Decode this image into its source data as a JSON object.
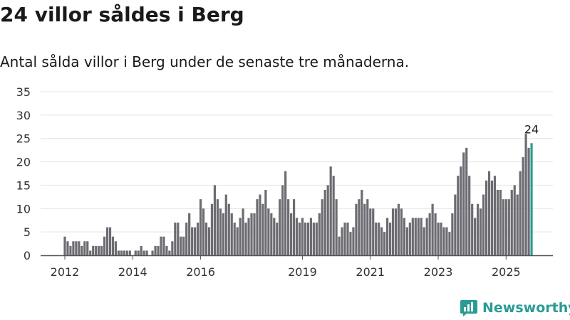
{
  "chart_data": {
    "type": "bar",
    "title": "24 villor såldes i Berg",
    "subtitle": "Antal sålda villor i Berg under de senaste tre månaderna.",
    "ylim": [
      0,
      35
    ],
    "yticks": [
      0,
      5,
      10,
      15,
      20,
      25,
      30,
      35
    ],
    "x_tick_labels": [
      {
        "label": "2012",
        "index": 0
      },
      {
        "label": "2014",
        "index": 24
      },
      {
        "label": "2016",
        "index": 48
      },
      {
        "label": "2019",
        "index": 84
      },
      {
        "label": "2021",
        "index": 108
      },
      {
        "label": "2023",
        "index": 132
      },
      {
        "label": "2025",
        "index": 156
      }
    ],
    "values": [
      4,
      3,
      2,
      3,
      3,
      3,
      2,
      3,
      3,
      1,
      2,
      2,
      2,
      2,
      4,
      6,
      6,
      4,
      3,
      1,
      1,
      1,
      1,
      1,
      0,
      1,
      1,
      2,
      1,
      1,
      0,
      1,
      2,
      2,
      4,
      4,
      2,
      1,
      3,
      7,
      7,
      4,
      4,
      7,
      9,
      6,
      6,
      7,
      12,
      10,
      7,
      6,
      11,
      15,
      12,
      10,
      9,
      13,
      11,
      9,
      7,
      6,
      8,
      10,
      7,
      8,
      9,
      9,
      12,
      13,
      11,
      14,
      10,
      9,
      8,
      7,
      12,
      15,
      18,
      12,
      9,
      12,
      8,
      7,
      8,
      7,
      7,
      8,
      7,
      7,
      9,
      12,
      14,
      15,
      19,
      17,
      12,
      4,
      6,
      7,
      7,
      5,
      6,
      11,
      12,
      14,
      11,
      12,
      10,
      10,
      7,
      7,
      6,
      5,
      8,
      7,
      10,
      10,
      11,
      10,
      8,
      6,
      7,
      8,
      8,
      8,
      8,
      6,
      8,
      9,
      11,
      9,
      7,
      7,
      6,
      6,
      5,
      9,
      13,
      17,
      19,
      22,
      23,
      17,
      11,
      8,
      11,
      10,
      13,
      16,
      18,
      16,
      17,
      14,
      14,
      12,
      12,
      12,
      14,
      15,
      13,
      18,
      21,
      26,
      23,
      24
    ],
    "last_label": "24",
    "colors": {
      "bar": "#6c6c72",
      "highlight": "#2b9b94",
      "grid": "#e3e3e3",
      "axis": "#555555"
    }
  },
  "brand": {
    "name": "Newsworthy"
  }
}
